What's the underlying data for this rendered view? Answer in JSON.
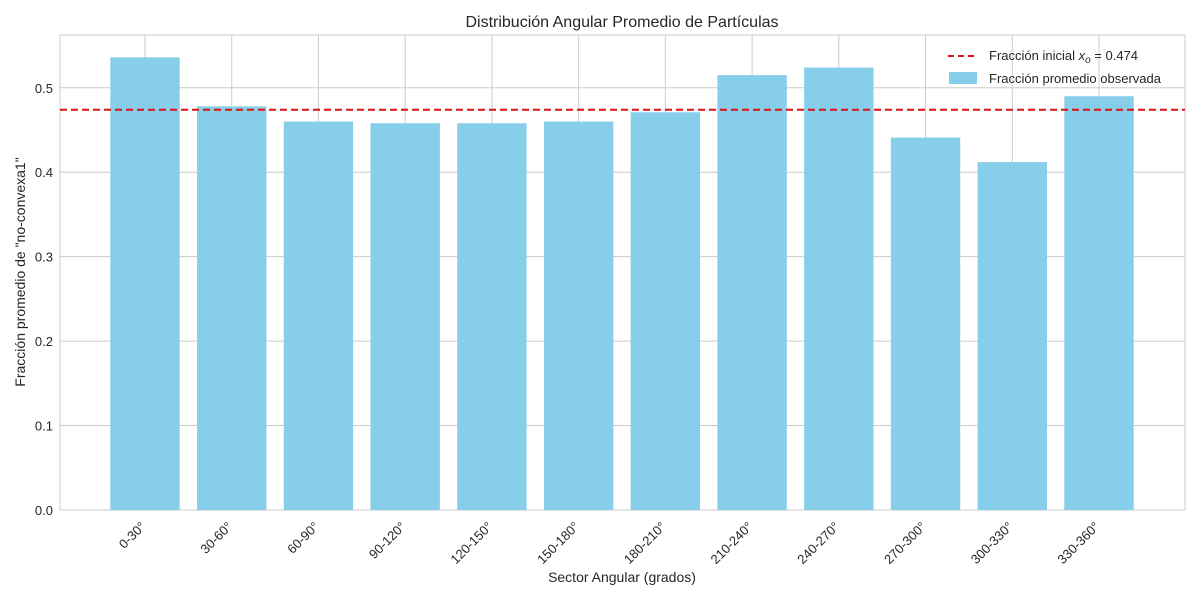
{
  "chart_data": {
    "type": "bar",
    "title": "Distribución Angular Promedio de Partículas",
    "xlabel": "Sector Angular (grados)",
    "ylabel": "Fracción promedio de \"no-convexa1\"",
    "categories": [
      "0-30°",
      "30-60°",
      "60-90°",
      "90-120°",
      "120-150°",
      "150-180°",
      "180-210°",
      "210-240°",
      "240-270°",
      "270-300°",
      "300-330°",
      "330-360°"
    ],
    "series": [
      {
        "name": "Fracción promedio observada",
        "values": [
          0.536,
          0.478,
          0.46,
          0.458,
          0.458,
          0.46,
          0.471,
          0.515,
          0.524,
          0.441,
          0.412,
          0.49
        ],
        "color": "#87ceeb"
      }
    ],
    "reference_line": {
      "label_prefix": "Fracción inicial ",
      "label_var": "x",
      "label_sub": "o",
      "label_suffix": " = 0.474",
      "value": 0.474,
      "color": "#dd1111",
      "style": "dashed"
    },
    "ylim": [
      0,
      0.5625
    ],
    "yticks": [
      "0.0",
      "0.1",
      "0.2",
      "0.3",
      "0.4",
      "0.5"
    ],
    "grid": true,
    "legend_position": "top-right"
  }
}
